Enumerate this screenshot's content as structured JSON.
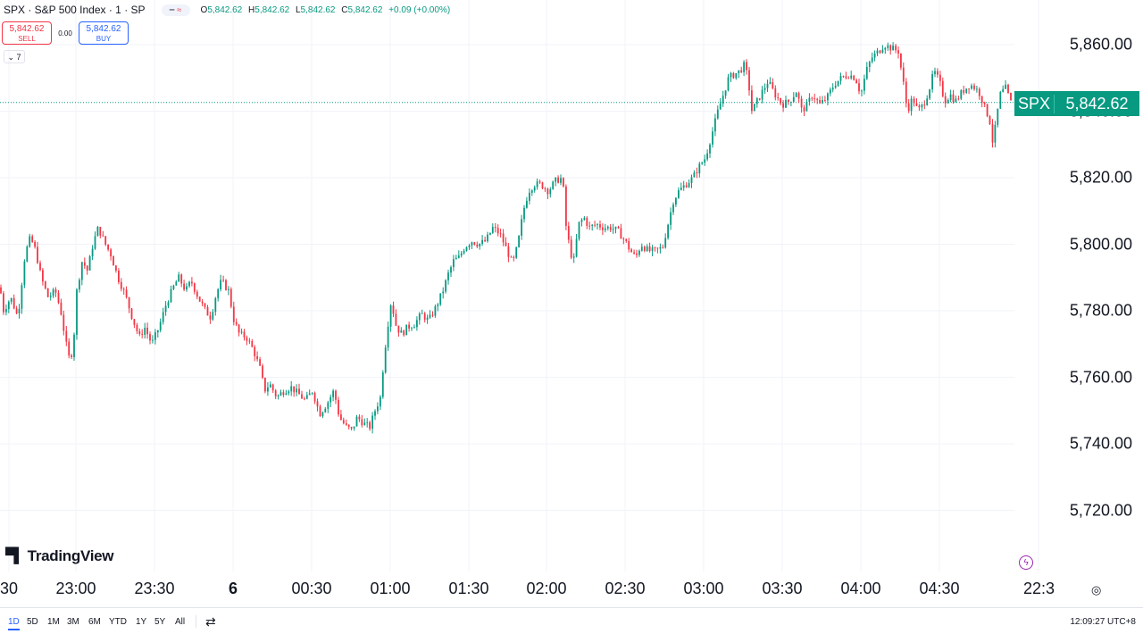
{
  "header": {
    "symbol_title": "SPX · S&P 500 Index · 1 · SP",
    "toggle_left": "━",
    "toggle_right": "≈",
    "ohlc": {
      "o_label": "O",
      "o": "5,842.62",
      "h_label": "H",
      "h": "5,842.62",
      "l_label": "L",
      "l": "5,842.62",
      "c_label": "C",
      "c": "5,842.62",
      "change": "+0.09 (+0.00%)"
    }
  },
  "trade": {
    "sell_price": "5,842.62",
    "sell_label": "SELL",
    "spread": "0.00",
    "buy_price": "5,842.62",
    "buy_label": "BUY"
  },
  "collapse_label": "⌄ 7",
  "logo_text": "TradingView",
  "price_tag": {
    "symbol": "SPX",
    "price": "5,842.62"
  },
  "colors": {
    "up": "#089981",
    "down": "#f23645",
    "grid": "#f0f3fa",
    "price_line": "#089981"
  },
  "range_buttons": [
    "1D",
    "5D",
    "1M",
    "3M",
    "6M",
    "YTD",
    "1Y",
    "5Y",
    "All"
  ],
  "active_range": "1D",
  "clock": "12:09:27 UTC+8",
  "icons": {
    "calendar": "calendar-range-icon",
    "settings": "settings-icon",
    "bolt": "lightning-icon",
    "logo": "tradingview-logo-icon"
  },
  "chart_data": {
    "type": "candlestick",
    "title": "",
    "ylim": [
      5705,
      5866
    ],
    "y_ticks": [
      "5,860.00",
      "5,840.00",
      "5,820.00",
      "5,800.00",
      "5,780.00",
      "5,760.00",
      "5,740.00",
      "5,720.00"
    ],
    "y_tick_values": [
      5860,
      5840,
      5820,
      5800,
      5780,
      5760,
      5740,
      5720
    ],
    "x_tick_labels": [
      "30",
      "23:00",
      "23:30",
      "6",
      "00:30",
      "01:00",
      "01:30",
      "02:00",
      "02:30",
      "03:00",
      "03:30",
      "04:00",
      "04:30",
      "22:3"
    ],
    "last_price": 5842.62,
    "grid": true,
    "path": [
      [
        0,
        5787
      ],
      [
        4,
        5780
      ],
      [
        12,
        5784
      ],
      [
        20,
        5778
      ],
      [
        28,
        5797
      ],
      [
        34,
        5802
      ],
      [
        40,
        5798
      ],
      [
        46,
        5790
      ],
      [
        54,
        5784
      ],
      [
        62,
        5786
      ],
      [
        68,
        5780
      ],
      [
        74,
        5770
      ],
      [
        78,
        5765
      ],
      [
        82,
        5769
      ],
      [
        86,
        5786
      ],
      [
        92,
        5795
      ],
      [
        98,
        5792
      ],
      [
        104,
        5800
      ],
      [
        110,
        5805
      ],
      [
        118,
        5800
      ],
      [
        124,
        5797
      ],
      [
        132,
        5790
      ],
      [
        140,
        5785
      ],
      [
        148,
        5778
      ],
      [
        156,
        5772
      ],
      [
        162,
        5775
      ],
      [
        170,
        5770
      ],
      [
        178,
        5775
      ],
      [
        186,
        5782
      ],
      [
        194,
        5787
      ],
      [
        200,
        5790
      ],
      [
        208,
        5786
      ],
      [
        214,
        5789
      ],
      [
        222,
        5784
      ],
      [
        230,
        5780
      ],
      [
        236,
        5778
      ],
      [
        242,
        5785
      ],
      [
        248,
        5789
      ],
      [
        256,
        5786
      ],
      [
        262,
        5777
      ],
      [
        268,
        5773
      ],
      [
        276,
        5772
      ],
      [
        284,
        5768
      ],
      [
        292,
        5762
      ],
      [
        296,
        5756
      ],
      [
        302,
        5758
      ],
      [
        310,
        5754
      ],
      [
        318,
        5756
      ],
      [
        326,
        5757
      ],
      [
        334,
        5755
      ],
      [
        342,
        5753
      ],
      [
        350,
        5756
      ],
      [
        358,
        5749
      ],
      [
        366,
        5752
      ],
      [
        374,
        5756
      ],
      [
        380,
        5748
      ],
      [
        388,
        5745
      ],
      [
        394,
        5744
      ],
      [
        400,
        5748
      ],
      [
        408,
        5746
      ],
      [
        414,
        5745
      ],
      [
        420,
        5750
      ],
      [
        426,
        5754
      ],
      [
        430,
        5766
      ],
      [
        434,
        5775
      ],
      [
        438,
        5783
      ],
      [
        444,
        5775
      ],
      [
        450,
        5773
      ],
      [
        456,
        5775
      ],
      [
        464,
        5776
      ],
      [
        472,
        5779
      ],
      [
        480,
        5777
      ],
      [
        488,
        5781
      ],
      [
        496,
        5786
      ],
      [
        502,
        5791
      ],
      [
        508,
        5795
      ],
      [
        514,
        5796
      ],
      [
        520,
        5799
      ],
      [
        528,
        5801
      ],
      [
        536,
        5800
      ],
      [
        544,
        5801
      ],
      [
        552,
        5805
      ],
      [
        560,
        5803
      ],
      [
        568,
        5798
      ],
      [
        574,
        5794
      ],
      [
        580,
        5800
      ],
      [
        586,
        5810
      ],
      [
        592,
        5816
      ],
      [
        598,
        5818
      ],
      [
        606,
        5818
      ],
      [
        614,
        5816
      ],
      [
        622,
        5819
      ],
      [
        630,
        5820
      ],
      [
        634,
        5805
      ],
      [
        638,
        5799
      ],
      [
        642,
        5794
      ],
      [
        648,
        5806
      ],
      [
        654,
        5808
      ],
      [
        660,
        5805
      ],
      [
        668,
        5806
      ],
      [
        676,
        5805
      ],
      [
        684,
        5805
      ],
      [
        692,
        5804
      ],
      [
        700,
        5801
      ],
      [
        706,
        5798
      ],
      [
        712,
        5796
      ],
      [
        718,
        5800
      ],
      [
        726,
        5798
      ],
      [
        734,
        5798
      ],
      [
        742,
        5799
      ],
      [
        748,
        5806
      ],
      [
        754,
        5813
      ],
      [
        760,
        5816
      ],
      [
        768,
        5818
      ],
      [
        776,
        5820
      ],
      [
        782,
        5823
      ],
      [
        790,
        5826
      ],
      [
        796,
        5832
      ],
      [
        804,
        5840
      ],
      [
        810,
        5845
      ],
      [
        816,
        5850
      ],
      [
        822,
        5851
      ],
      [
        828,
        5852
      ],
      [
        834,
        5854
      ],
      [
        838,
        5849
      ],
      [
        842,
        5840
      ],
      [
        848,
        5843
      ],
      [
        854,
        5846
      ],
      [
        860,
        5849
      ],
      [
        868,
        5845
      ],
      [
        876,
        5842
      ],
      [
        884,
        5843
      ],
      [
        892,
        5846
      ],
      [
        898,
        5840
      ],
      [
        904,
        5842
      ],
      [
        910,
        5845
      ],
      [
        918,
        5842
      ],
      [
        926,
        5844
      ],
      [
        934,
        5848
      ],
      [
        942,
        5850
      ],
      [
        950,
        5851
      ],
      [
        958,
        5850
      ],
      [
        964,
        5845
      ],
      [
        970,
        5852
      ],
      [
        976,
        5856
      ],
      [
        984,
        5858
      ],
      [
        990,
        5860
      ],
      [
        998,
        5859
      ],
      [
        1006,
        5858
      ],
      [
        1012,
        5848
      ],
      [
        1016,
        5840
      ],
      [
        1022,
        5844
      ],
      [
        1028,
        5840
      ],
      [
        1034,
        5842
      ],
      [
        1040,
        5846
      ],
      [
        1046,
        5852
      ],
      [
        1052,
        5849
      ],
      [
        1058,
        5843
      ],
      [
        1064,
        5845
      ],
      [
        1070,
        5843
      ],
      [
        1078,
        5846
      ],
      [
        1086,
        5848
      ],
      [
        1092,
        5847
      ],
      [
        1098,
        5845
      ],
      [
        1104,
        5840
      ],
      [
        1108,
        5838
      ],
      [
        1112,
        5830
      ],
      [
        1116,
        5838
      ],
      [
        1120,
        5845
      ],
      [
        1126,
        5847
      ],
      [
        1132,
        5842.62
      ]
    ]
  }
}
